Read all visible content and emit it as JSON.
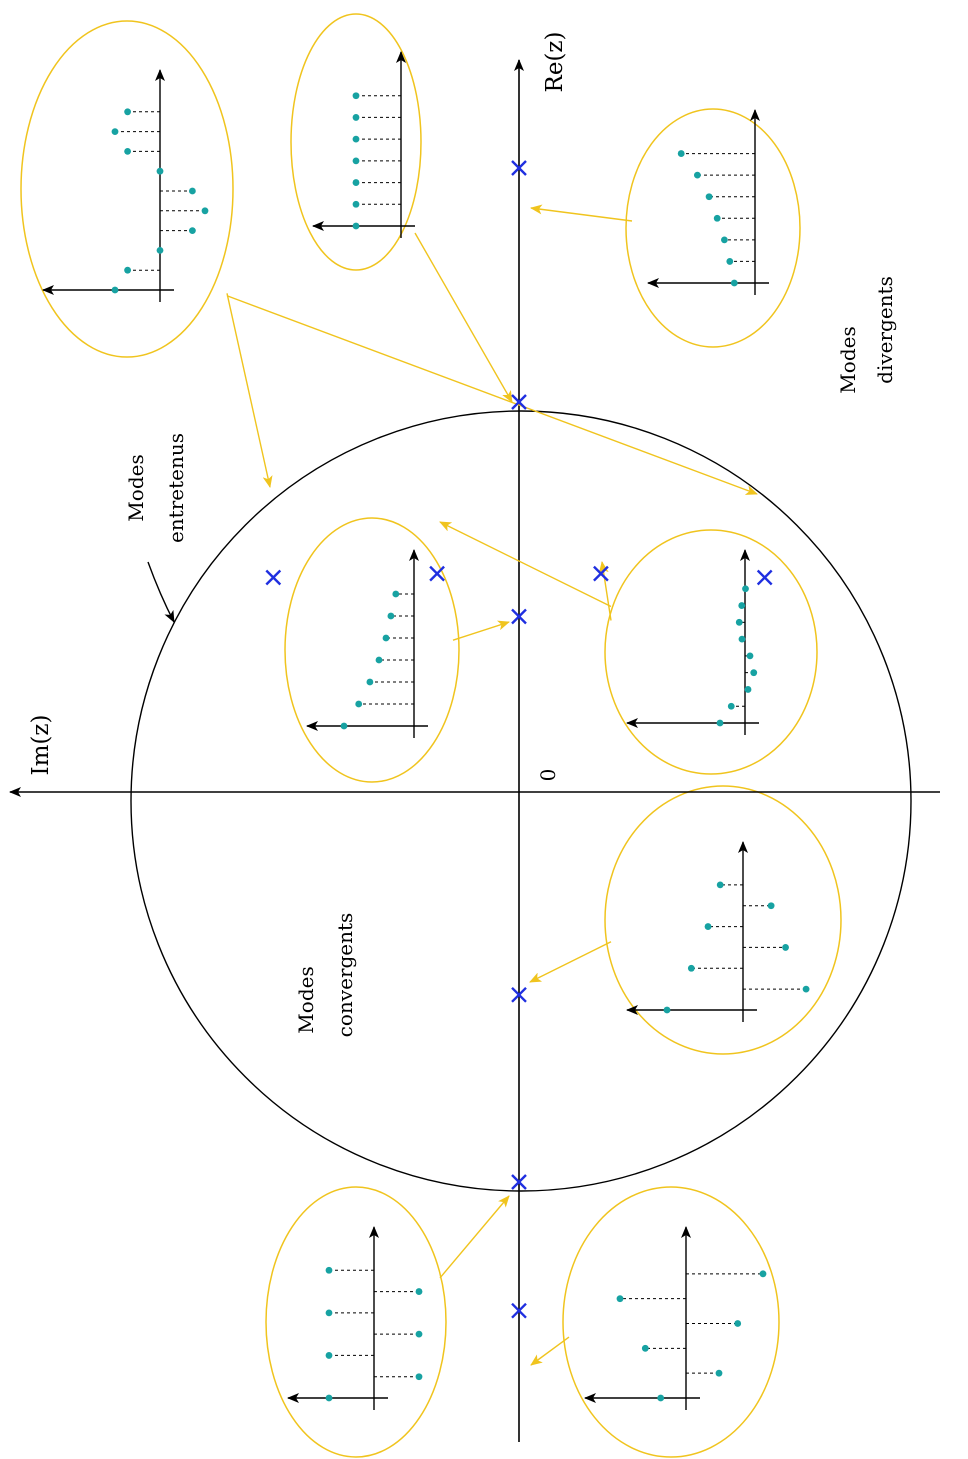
{
  "axes": {
    "re_label": "Re(z)",
    "im_label": "Im(z)",
    "origin_label": "0"
  },
  "regions": {
    "sustained": [
      "Modes",
      "entretenus"
    ],
    "diverging": [
      "Modes",
      "divergents"
    ],
    "converging": [
      "Modes",
      "convergents"
    ]
  },
  "colors": {
    "axis": "#000000",
    "unit_circle": "#000000",
    "pole": "#1f2fe0",
    "bubble": "#f0c41e",
    "sample_dot": "#17a2a2",
    "stem": "#000000"
  },
  "poles": [
    {
      "name": "pole-re-gt-1",
      "re": 1.6,
      "im": 0.0
    },
    {
      "name": "pole-re-eq-1",
      "re": 1.0,
      "im": 0.0
    },
    {
      "name": "pole-unit-circle-upper",
      "re": 0.55,
      "im": 0.63
    },
    {
      "name": "pole-unit-circle-lower",
      "re": 0.55,
      "im": -0.63
    },
    {
      "name": "pole-inside-upper",
      "re": 0.56,
      "im": 0.21
    },
    {
      "name": "pole-inside-lower",
      "re": 0.56,
      "im": -0.21
    },
    {
      "name": "pole-inside-positive",
      "re": 0.45,
      "im": 0.0
    },
    {
      "name": "pole-inside-negative",
      "re": -0.52,
      "im": 0.0
    },
    {
      "name": "pole-re-eq-minus-1",
      "re": -1.0,
      "im": 0.0
    },
    {
      "name": "pole-re-lt-minus-1",
      "re": -1.33,
      "im": 0.0
    }
  ],
  "responses": [
    {
      "name": "response-damped-oscillation",
      "pole": "pole-inside-upper / pole-inside-lower",
      "samples": [
        1.0,
        0.55,
        -0.12,
        -0.35,
        -0.2,
        0.12,
        0.23,
        0.13,
        -0.02
      ]
    },
    {
      "name": "response-decaying",
      "pole": "pole-inside-positive",
      "samples": [
        1.0,
        0.79,
        0.63,
        0.5,
        0.4,
        0.33,
        0.26
      ]
    },
    {
      "name": "response-sustained-oscillation",
      "pole": "pole-unit-circle-upper / pole-unit-circle-lower",
      "samples": [
        1.0,
        0.72,
        0.0,
        -0.72,
        -1.0,
        -0.72,
        0.0,
        0.72,
        1.0,
        0.72
      ]
    },
    {
      "name": "response-constant",
      "pole": "pole-re-eq-1",
      "samples": [
        1,
        1,
        1,
        1,
        1,
        1,
        1
      ]
    },
    {
      "name": "response-divergent",
      "pole": "pole-re-gt-1",
      "samples": [
        0.23,
        0.28,
        0.34,
        0.42,
        0.51,
        0.64,
        0.82
      ]
    },
    {
      "name": "response-alternating-decay",
      "pole": "pole-inside-negative",
      "samples": [
        1.0,
        -0.83,
        0.68,
        -0.56,
        0.46,
        -0.37,
        0.3
      ]
    },
    {
      "name": "response-alternating-constant",
      "pole": "pole-re-eq-minus-1",
      "samples": [
        1,
        -1,
        1,
        -1,
        1,
        -1,
        1
      ]
    },
    {
      "name": "response-alternating-divergent",
      "pole": "pole-re-lt-minus-1",
      "samples": [
        0.46,
        -0.6,
        0.74,
        -0.94,
        1.2,
        -1.4
      ]
    }
  ]
}
